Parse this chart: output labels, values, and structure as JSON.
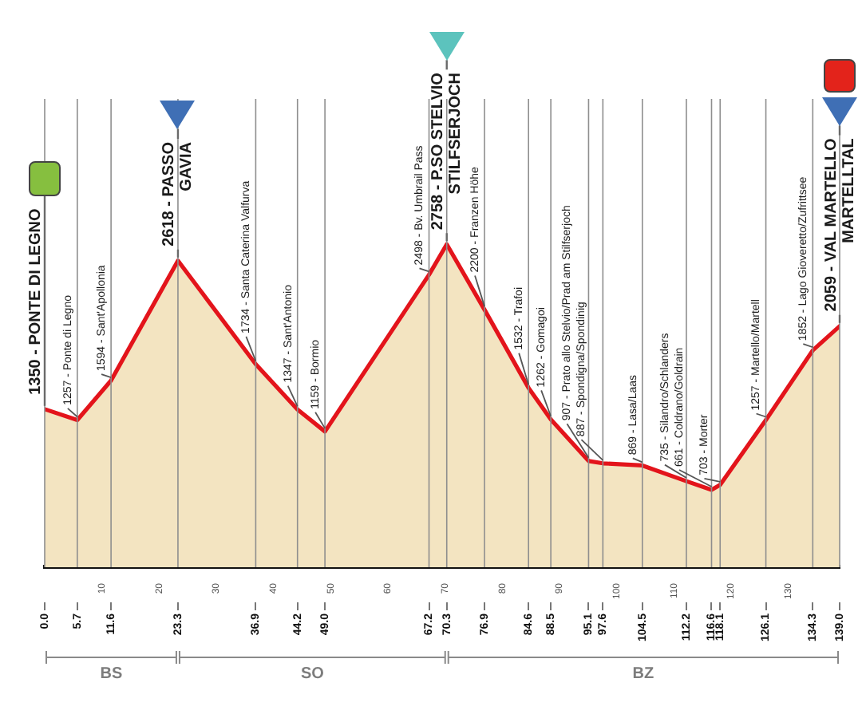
{
  "chart_data": {
    "type": "area",
    "x": [
      0,
      5.7,
      11.6,
      23.3,
      36.9,
      44.2,
      49,
      67.2,
      70.3,
      76.9,
      84.6,
      88.5,
      95.1,
      97.6,
      104.5,
      112.2,
      116.6,
      118.1,
      126.1,
      134.3,
      139
    ],
    "series": [
      {
        "color": "#e3141b",
        "values": [
          1350,
          1257,
          1594,
          2618,
          1734,
          1347,
          1159,
          2498,
          2758,
          2200,
          1532,
          1262,
          907,
          887,
          869,
          735,
          661,
          703,
          1257,
          1852,
          2059
        ],
        "value_labels": [
          "1350 - PONTE DI LEGNO",
          "1257 - Ponte di Legno",
          "1594 - Sant'Apollonia",
          "2618 - PASSO\nGAVIA",
          "1734 - Santa Caterina Valfurva",
          "1347 - Sant'Antonio",
          "1159 - Bormio",
          "2498 - Bv. Umbrail Pass",
          "2758 - P.SO STELVIO\nSTILFSERJOCH",
          "2200 - Franzen Höhe",
          "1532 - Trafoi",
          "1262 - Gomagoi",
          "907 - Prato allo Stelvio/Prad am Stilfserjoch",
          "887 - Spondigna/Spondinig",
          "869 - Lasa/Laas",
          "735 - Silandro/Schlanders",
          "661 - Coldrano/Goldrain",
          "703 - Morter",
          "1257 - Martello/Martell",
          "1852 - Lago Gioveretto/Zufrittsee",
          "2059 - VAL MARTELLO\nMARTELLTAL"
        ]
      }
    ],
    "xlim": [
      0,
      139
    ],
    "xticks": [
      {
        "value": 0,
        "label": "0.0"
      },
      5.7,
      11.6,
      23.3,
      36.9,
      44.2,
      {
        "value": 49,
        "label": "49.0"
      },
      67.2,
      70.3,
      76.9,
      84.6,
      88.5,
      95.1,
      97.6,
      104.5,
      112.2,
      116.6,
      118.1,
      126.1,
      134.3,
      {
        "value": 139,
        "label": "139.0"
      }
    ],
    "x2lim": [
      0,
      139
    ],
    "x2ticks": [
      10,
      20,
      30,
      40,
      50,
      60,
      70,
      80,
      90,
      100,
      110,
      120,
      130
    ],
    "tick_labels": "x",
    "grid": "x",
    "annotations": [
      "BS",
      "SO",
      "BZ"
    ]
  }
}
